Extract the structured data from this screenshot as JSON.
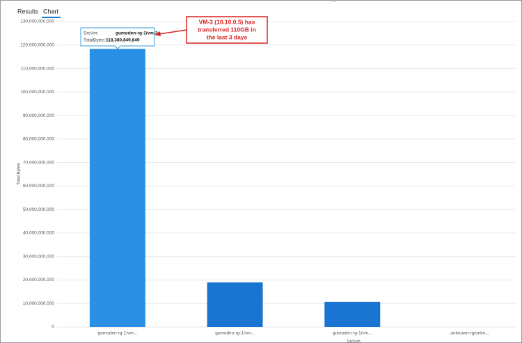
{
  "tabs": [
    "Results",
    "Chart"
  ],
  "chart_data": {
    "type": "bar",
    "categories": [
      "gumoden-rg-1/vm...",
      "gumoden-rg-1/vm...",
      "gumoden-rg-1/vm...",
      "unknown-rg/unkn..."
    ],
    "values": [
      118380849849,
      19000000000,
      10700000000,
      0
    ],
    "colors": [
      "#2a90e6",
      "#1a74d1",
      "#1a74d1",
      "#1a74d1"
    ],
    "ylabel": "Total Bytes",
    "xlabel": "SrcVm",
    "ylim": [
      0,
      130000000000
    ],
    "yticks": [
      0,
      {
        "value": 10000000000,
        "label": "10,000,000,000"
      },
      {
        "value": 20000000000,
        "label": "20,000,000,000"
      },
      {
        "value": 30000000000,
        "label": "30,000,000,000"
      },
      {
        "value": 40000000000,
        "label": "40,000,000,000"
      },
      {
        "value": 50000000000,
        "label": "50,000,000,000"
      },
      {
        "value": 60000000000,
        "label": "60,000,000,000"
      },
      {
        "value": 70000000000,
        "label": "70,000,000,000"
      },
      {
        "value": 80000000000,
        "label": "80,000,000,000"
      },
      {
        "value": 90000000000,
        "label": "90,000,000,000"
      },
      {
        "value": 100000000000,
        "label": "100,000,000,000"
      },
      {
        "value": 110000000000,
        "label": "110,000,000,000"
      },
      {
        "value": 120000000000,
        "label": "120,000,000,000"
      },
      {
        "value": 130000000000,
        "label": "130,000,000,000"
      }
    ],
    "grid": true
  },
  "tooltip": {
    "rows": [
      [
        "SrcVm:",
        "gumoden-rg-1/vm-3"
      ],
      [
        "TotalBytes:",
        "118,380,849,849"
      ]
    ]
  },
  "annotation": {
    "lines": [
      "VM-3 (10.10.0.5) has",
      "transferred 110GB in",
      "the last 3 days"
    ]
  }
}
